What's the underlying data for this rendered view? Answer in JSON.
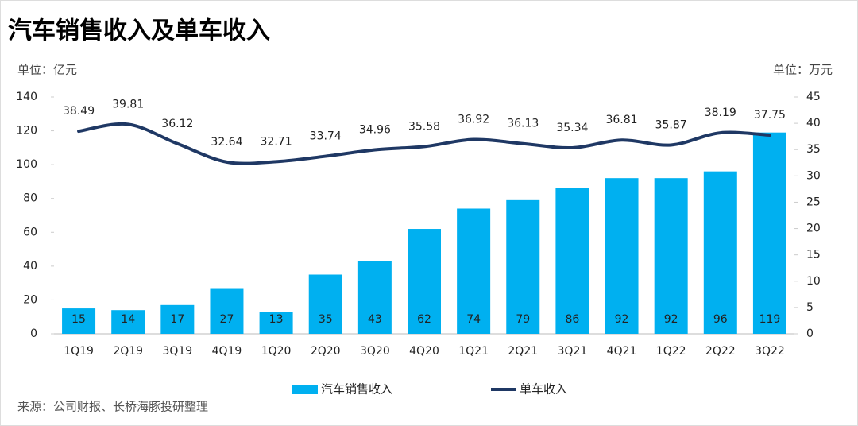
{
  "chart_data": {
    "type": "bar_line",
    "title": "汽车销售收入及单车收入",
    "y_unit": "单位：亿元",
    "y2_unit": "单位：万元",
    "source": "来源：公司财报、长桥海豚投研整理",
    "categories": [
      "1Q19",
      "2Q19",
      "3Q19",
      "4Q19",
      "1Q20",
      "2Q20",
      "3Q20",
      "4Q20",
      "1Q21",
      "2Q21",
      "3Q21",
      "4Q21",
      "1Q22",
      "2Q22",
      "3Q22"
    ],
    "series": [
      {
        "name": "汽车销售收入",
        "type": "bar",
        "color": "#00b0f0",
        "values": [
          15,
          14,
          17,
          27,
          13,
          35,
          43,
          62,
          74,
          79,
          86,
          92,
          92,
          96,
          119
        ]
      },
      {
        "name": "单车收入",
        "type": "line",
        "axis": "y2",
        "color": "#1f3864",
        "values": [
          38.49,
          39.81,
          36.12,
          32.64,
          32.71,
          33.74,
          34.96,
          35.58,
          36.92,
          36.13,
          35.34,
          36.81,
          35.87,
          38.19,
          37.75
        ]
      }
    ],
    "ylim": [
      0,
      140
    ],
    "yticks": [
      0,
      20,
      40,
      60,
      80,
      100,
      120,
      140
    ],
    "y2lim": [
      0,
      45
    ],
    "y2ticks": [
      0,
      5,
      10,
      15,
      20,
      25,
      30,
      35,
      40,
      45
    ]
  }
}
